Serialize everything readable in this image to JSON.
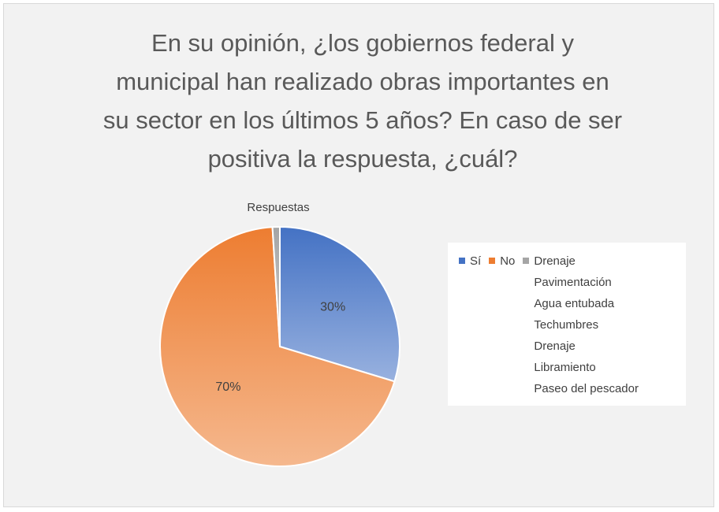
{
  "chart_data": {
    "type": "pie",
    "title": "En su opinión, ¿los gobiernos federal y municipal han realizado obras importantes en su sector en los últimos 5 años? En caso de ser positiva la respuesta, ¿cuál?",
    "subtitle": "Respuestas",
    "categories": [
      "Sí",
      "No",
      "Drenaje\nPavimentación\nAgua entubada\nTechumbres\nDrenaje\nLibramiento\nPaseo del pescador"
    ],
    "values": [
      30,
      70,
      1
    ],
    "value_labels": [
      "30%",
      "70%",
      null
    ],
    "colors": [
      "#4472c4",
      "#ed7d31",
      "#a5a5a5"
    ],
    "legend": "right"
  }
}
